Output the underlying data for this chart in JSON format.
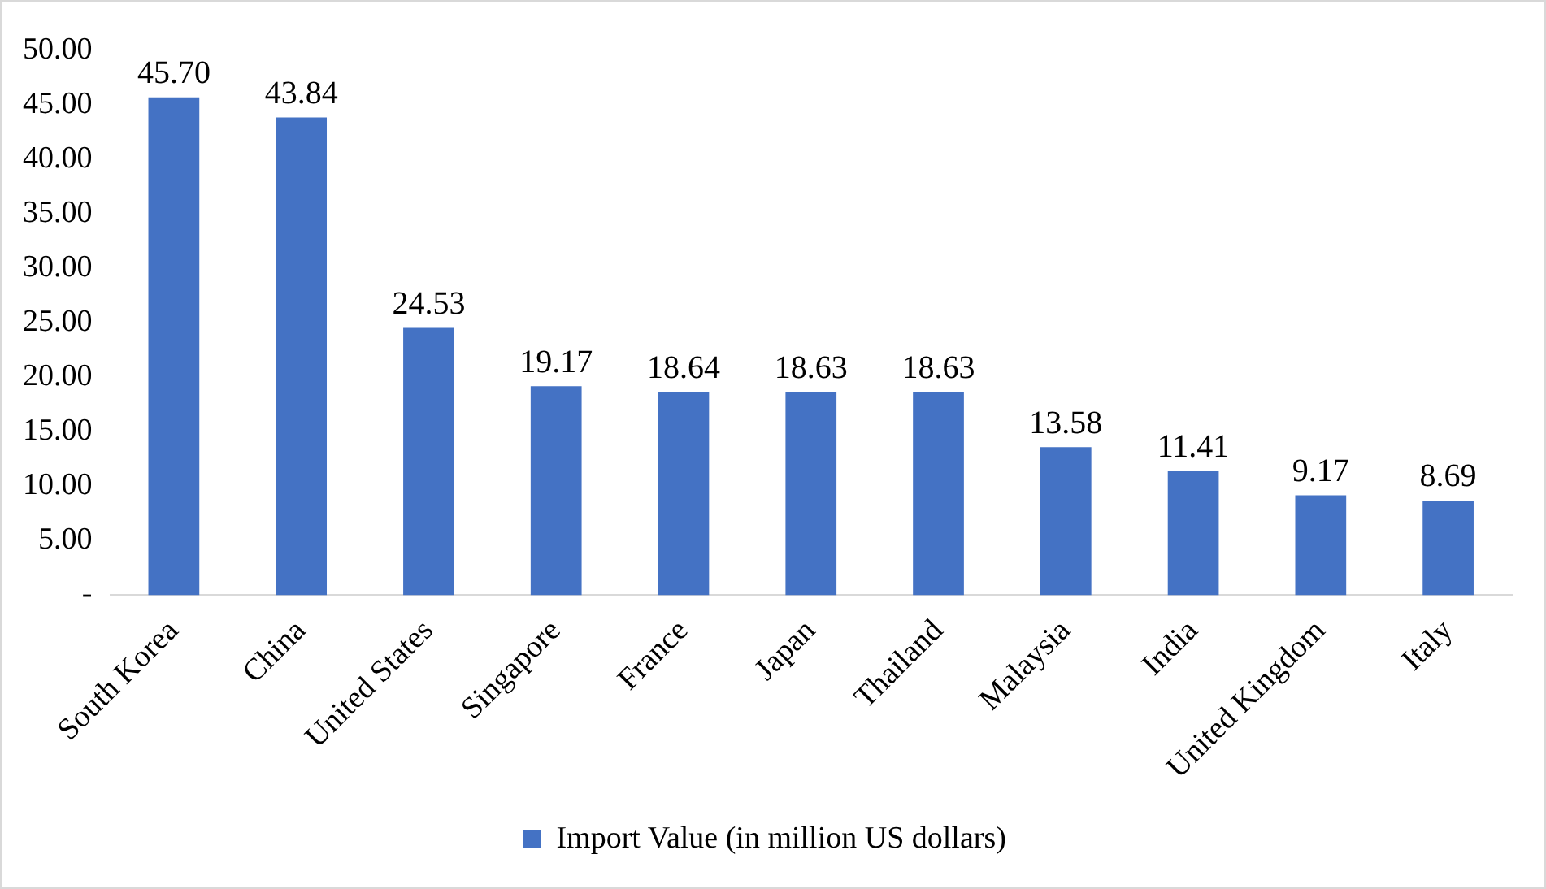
{
  "chart_data": {
    "type": "bar",
    "categories": [
      "South Korea",
      "China",
      "United States",
      "Singapore",
      "France",
      "Japan",
      "Thailand",
      "Malaysia",
      "India",
      "United Kingdom",
      "Italy"
    ],
    "series": [
      {
        "name": "Import Value (in million US dollars)",
        "color": "#4472c4",
        "values": [
          45.7,
          43.84,
          24.53,
          19.17,
          18.64,
          18.63,
          18.63,
          13.58,
          11.41,
          9.17,
          8.69
        ],
        "value_labels": [
          "45.70",
          "43.84",
          "24.53",
          "19.17",
          "18.64",
          "18.63",
          "18.63",
          "13.58",
          "11.41",
          "9.17",
          "8.69"
        ]
      }
    ],
    "ylim": [
      0,
      50
    ],
    "yticks": [
      {
        "value": 0,
        "label": "-"
      },
      {
        "value": 5,
        "label": "5.00"
      },
      {
        "value": 10,
        "label": "10.00"
      },
      {
        "value": 15,
        "label": "15.00"
      },
      {
        "value": 20,
        "label": "20.00"
      },
      {
        "value": 25,
        "label": "25.00"
      },
      {
        "value": 30,
        "label": "30.00"
      },
      {
        "value": 35,
        "label": "35.00"
      },
      {
        "value": 40,
        "label": "40.00"
      },
      {
        "value": 45,
        "label": "45.00"
      },
      {
        "value": 50,
        "label": "50.00"
      }
    ],
    "grid": false,
    "legend": "bottom"
  }
}
